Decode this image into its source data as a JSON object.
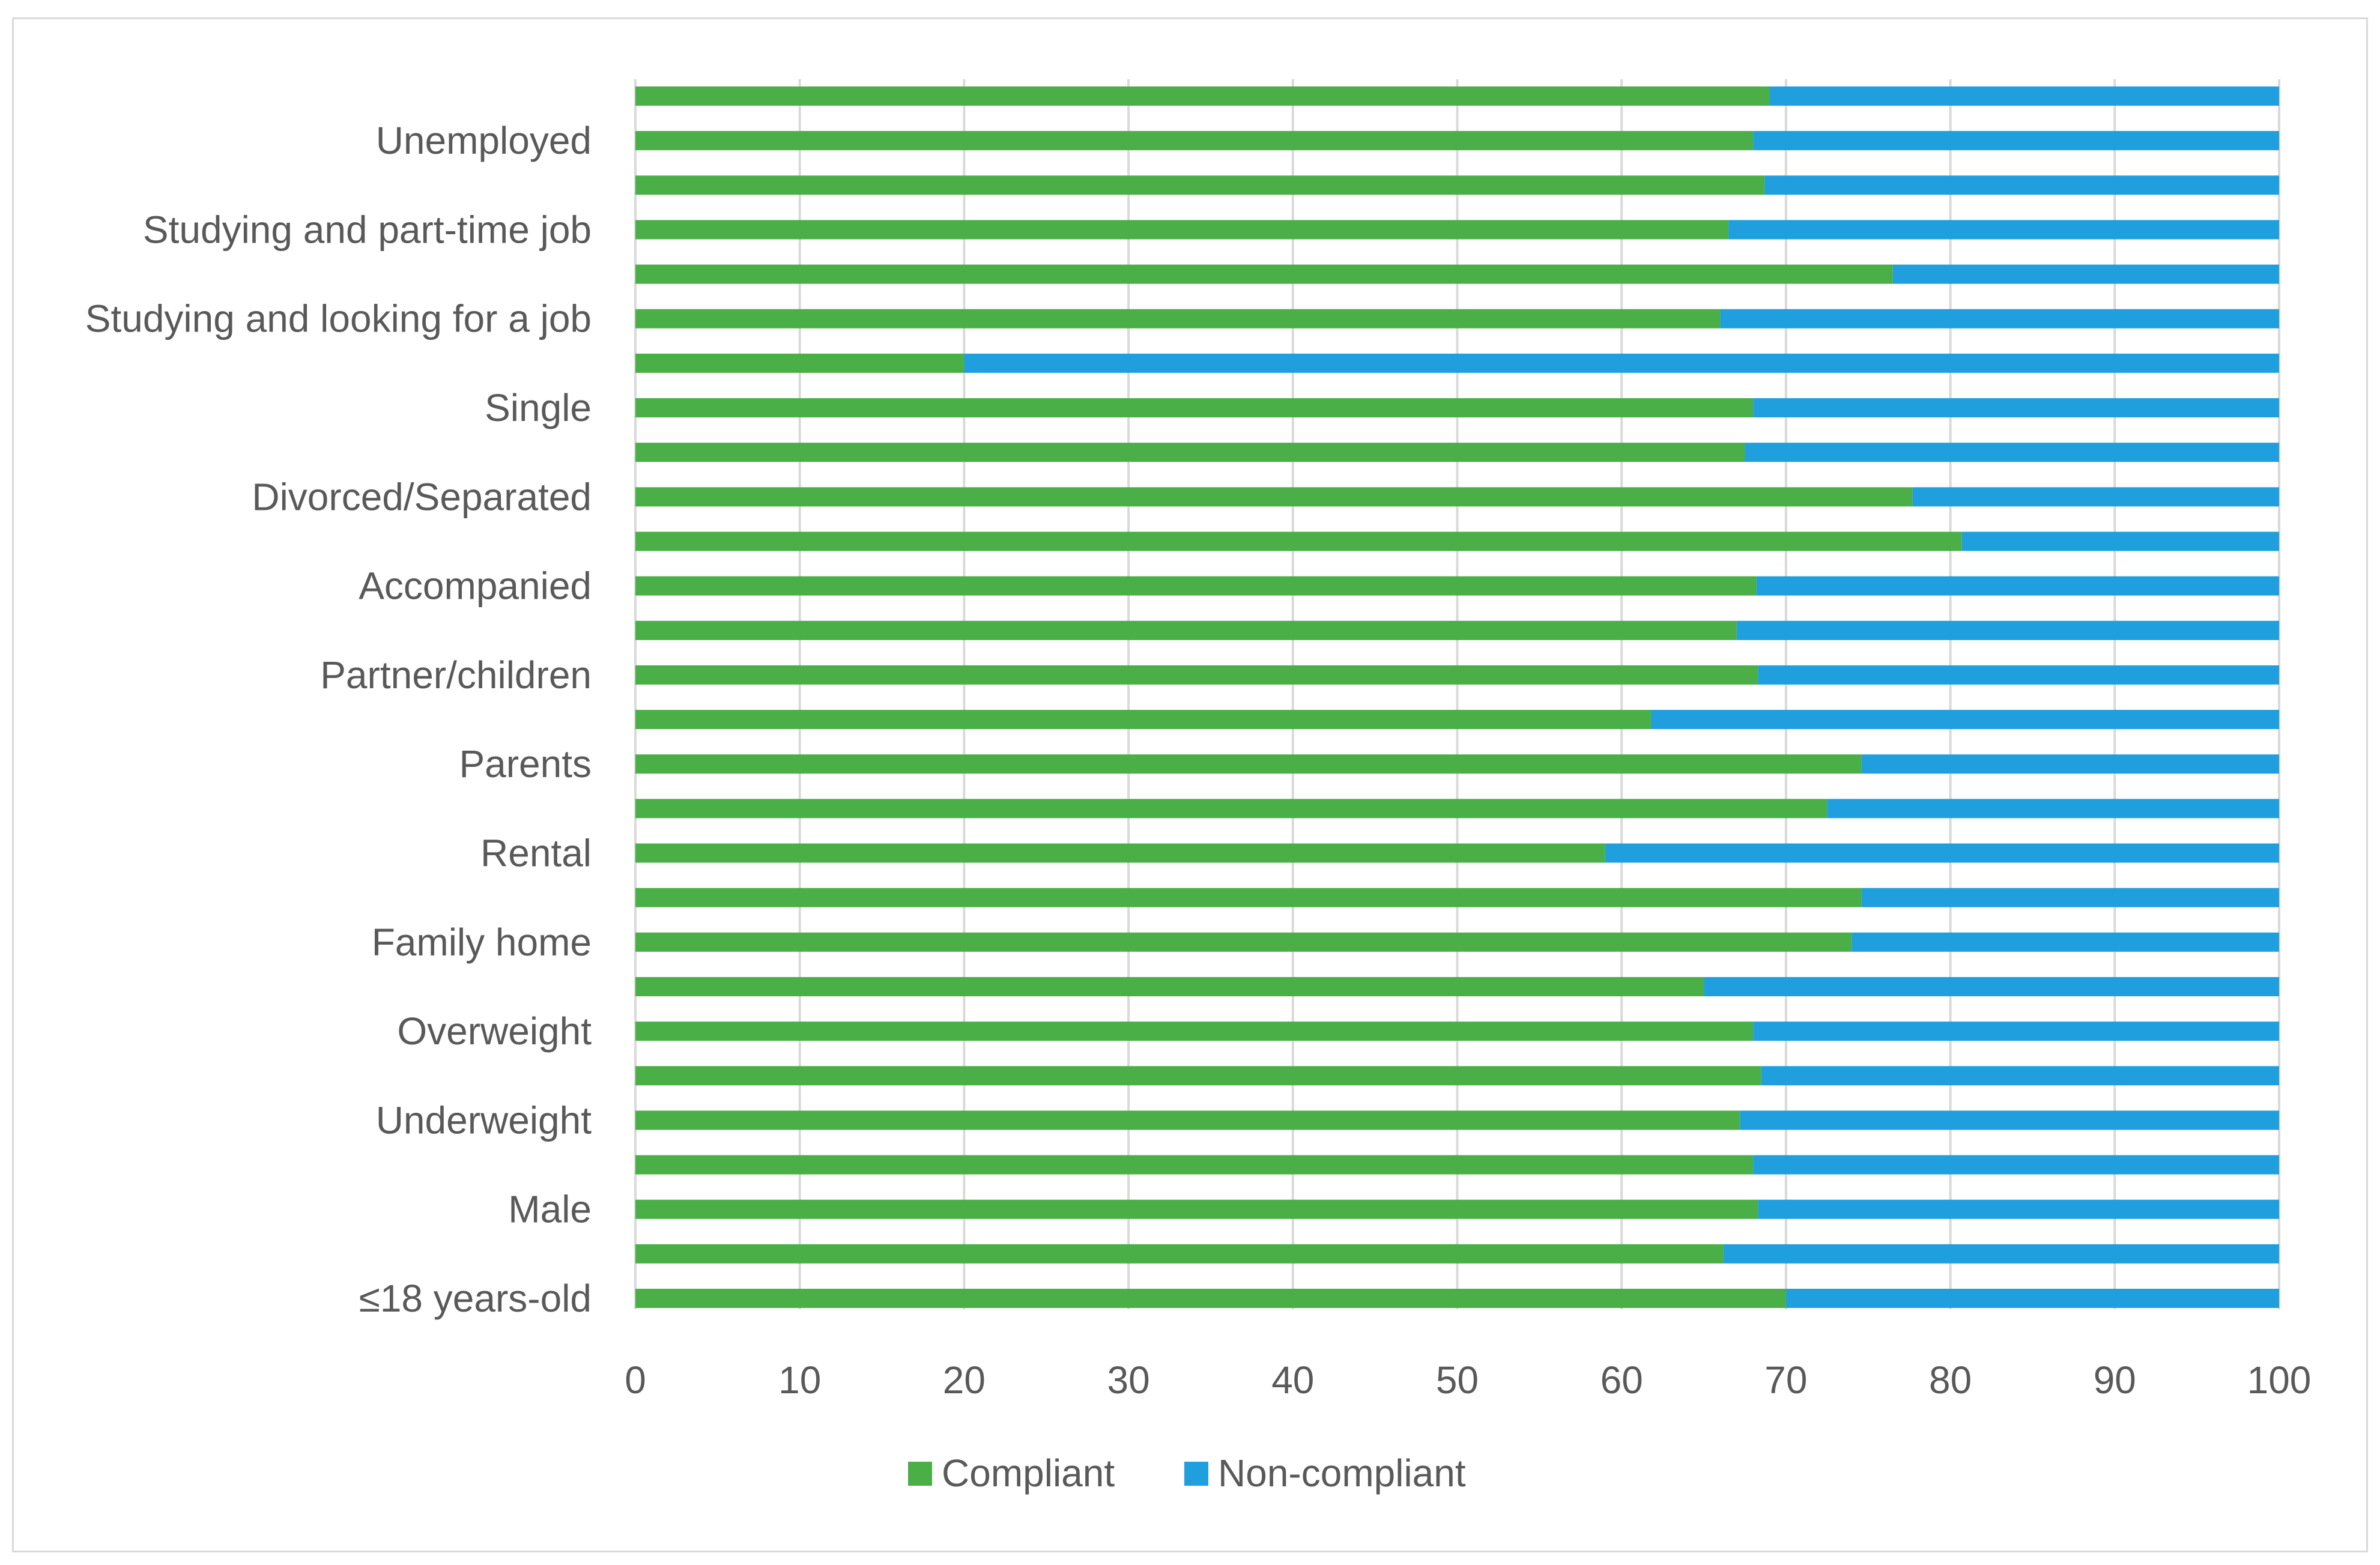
{
  "chart_data": {
    "type": "bar",
    "orientation": "horizontal",
    "stacked": true,
    "categories": [
      "",
      "Unemployed",
      "",
      "Studying and part-time job",
      "",
      "Studying and looking for a job",
      "",
      "Single",
      "",
      "Divorced/Separated",
      "",
      "Accompanied",
      "",
      "Partner/children",
      "",
      "Parents",
      "",
      "Rental",
      "",
      "Family home",
      "",
      "Overweight",
      "",
      "Underweight",
      "",
      "Male",
      "",
      "≤18 years-old"
    ],
    "series": [
      {
        "name": "Compliant",
        "color": "#4aaf46",
        "values": [
          69,
          68,
          68.7,
          66.5,
          76.5,
          66,
          20,
          68,
          67.5,
          77.7,
          80.7,
          68.2,
          67,
          68.3,
          61.8,
          74.6,
          72.5,
          59,
          74.6,
          74,
          65,
          68,
          68.5,
          67.2,
          68,
          68.3,
          66.2,
          70
        ]
      },
      {
        "name": "Non-compliant",
        "color": "#1f9fdd",
        "values": [
          31,
          32,
          31.3,
          33.5,
          23.5,
          34,
          80,
          32,
          32.5,
          22.3,
          19.3,
          31.8,
          33,
          31.7,
          38.2,
          25.4,
          27.5,
          41,
          25.4,
          26,
          35,
          32,
          31.5,
          32.8,
          32,
          31.7,
          33.8,
          30
        ]
      }
    ],
    "x_ticks": [
      "0",
      "10",
      "20",
      "30",
      "40",
      "50",
      "60",
      "70",
      "80",
      "90",
      "100"
    ],
    "xlim": [
      0,
      100
    ],
    "title": "",
    "xlabel": "",
    "ylabel": "",
    "grid": "vertical",
    "legend": "bottom"
  }
}
